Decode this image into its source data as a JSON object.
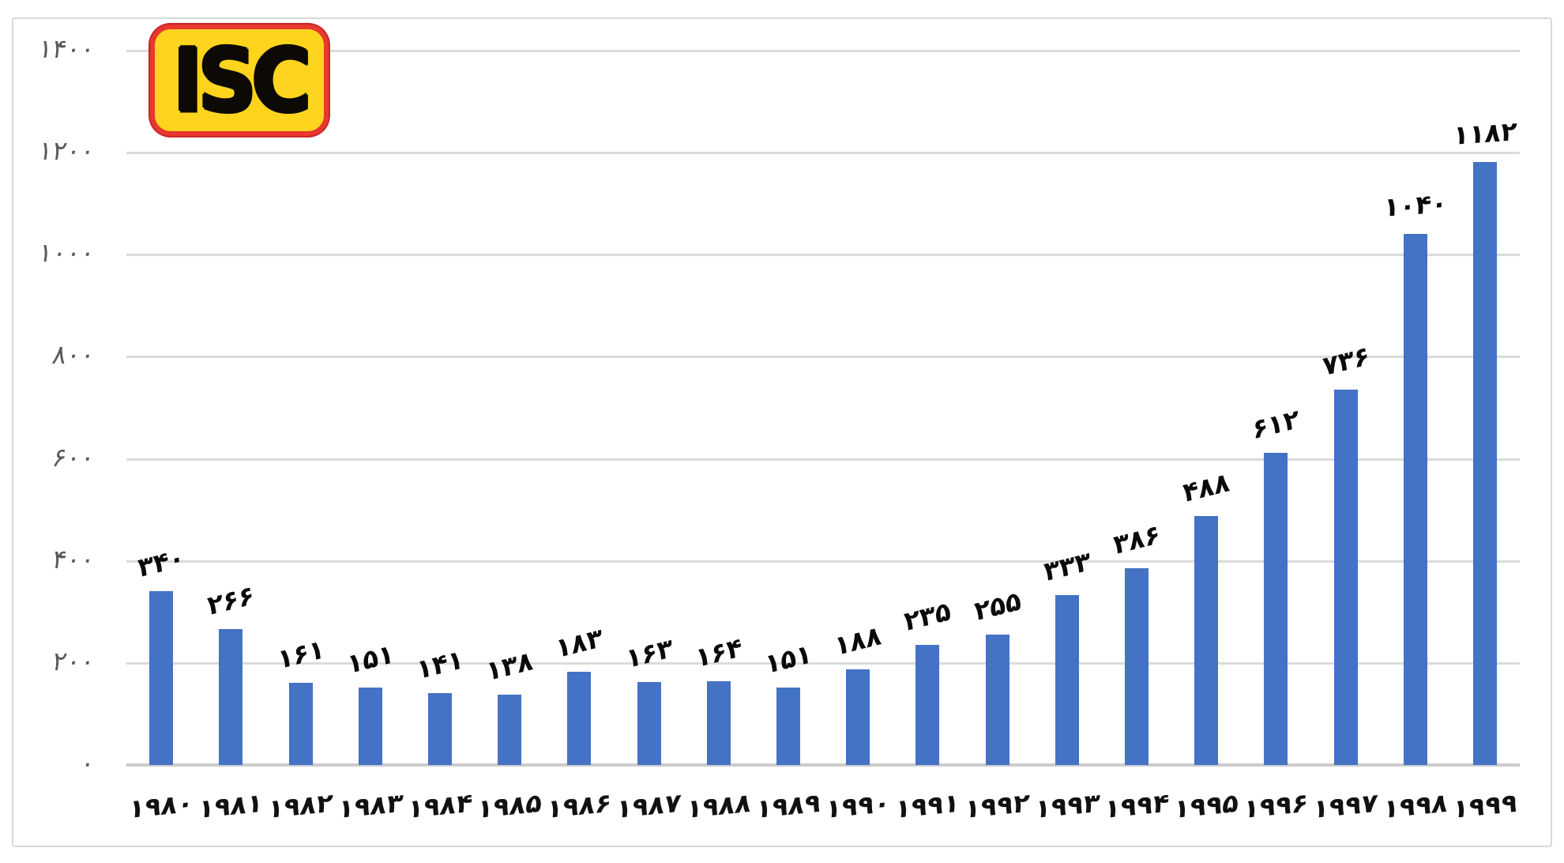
{
  "logo": {
    "text": "ISC",
    "bg_color": "#ffd41f",
    "border_color": "#e8372c",
    "text_color": "#0d0a05"
  },
  "chart_data": {
    "type": "bar",
    "title": "",
    "xlabel": "",
    "ylabel": "",
    "categories": [
      "1980",
      "1981",
      "1982",
      "1983",
      "1984",
      "1985",
      "1986",
      "1987",
      "1988",
      "1989",
      "1990",
      "1991",
      "1992",
      "1993",
      "1994",
      "1995",
      "1996",
      "1997",
      "1998",
      "1999"
    ],
    "category_labels": [
      "۱۹۸۰",
      "۱۹۸۱",
      "۱۹۸۲",
      "۱۹۸۳",
      "۱۹۸۴",
      "۱۹۸۵",
      "۱۹۸۶",
      "۱۹۸۷",
      "۱۹۸۸",
      "۱۹۸۹",
      "۱۹۹۰",
      "۱۹۹۱",
      "۱۹۹۲",
      "۱۹۹۳",
      "۱۹۹۴",
      "۱۹۹۵",
      "۱۹۹۶",
      "۱۹۹۷",
      "۱۹۹۸",
      "۱۹۹۹"
    ],
    "values": [
      340,
      266,
      161,
      151,
      141,
      138,
      183,
      163,
      164,
      151,
      188,
      235,
      255,
      333,
      386,
      488,
      612,
      736,
      1040,
      1182
    ],
    "value_labels": [
      "۳۴۰",
      "۲۶۶",
      "۱۶۱",
      "۱۵۱",
      "۱۴۱",
      "۱۳۸",
      "۱۸۳",
      "۱۶۳",
      "۱۶۴",
      "۱۵۱",
      "۱۸۸",
      "۲۳۵",
      "۲۵۵",
      "۳۳۳",
      "۳۸۶",
      "۴۸۸",
      "۶۱۲",
      "۷۳۶",
      "۱۰۴۰",
      "۱۱۸۲"
    ],
    "ylim": [
      0,
      1400
    ],
    "yticks": [
      0,
      200,
      400,
      600,
      800,
      1000,
      1200,
      1400
    ],
    "ytick_labels": [
      "۰",
      "۲۰۰",
      "۴۰۰",
      "۶۰۰",
      "۸۰۰",
      "۱۰۰۰",
      "۱۲۰۰",
      "۱۴۰۰"
    ],
    "grid": true,
    "legend": "none",
    "bar_color": "#4472c4",
    "gridline_color": "#dbdbdb",
    "axis_line_color": "#cccccc",
    "ytick_label_color": "#595959",
    "value_label_color": "#0a0a0a",
    "xtick_label_color": "#111111"
  }
}
